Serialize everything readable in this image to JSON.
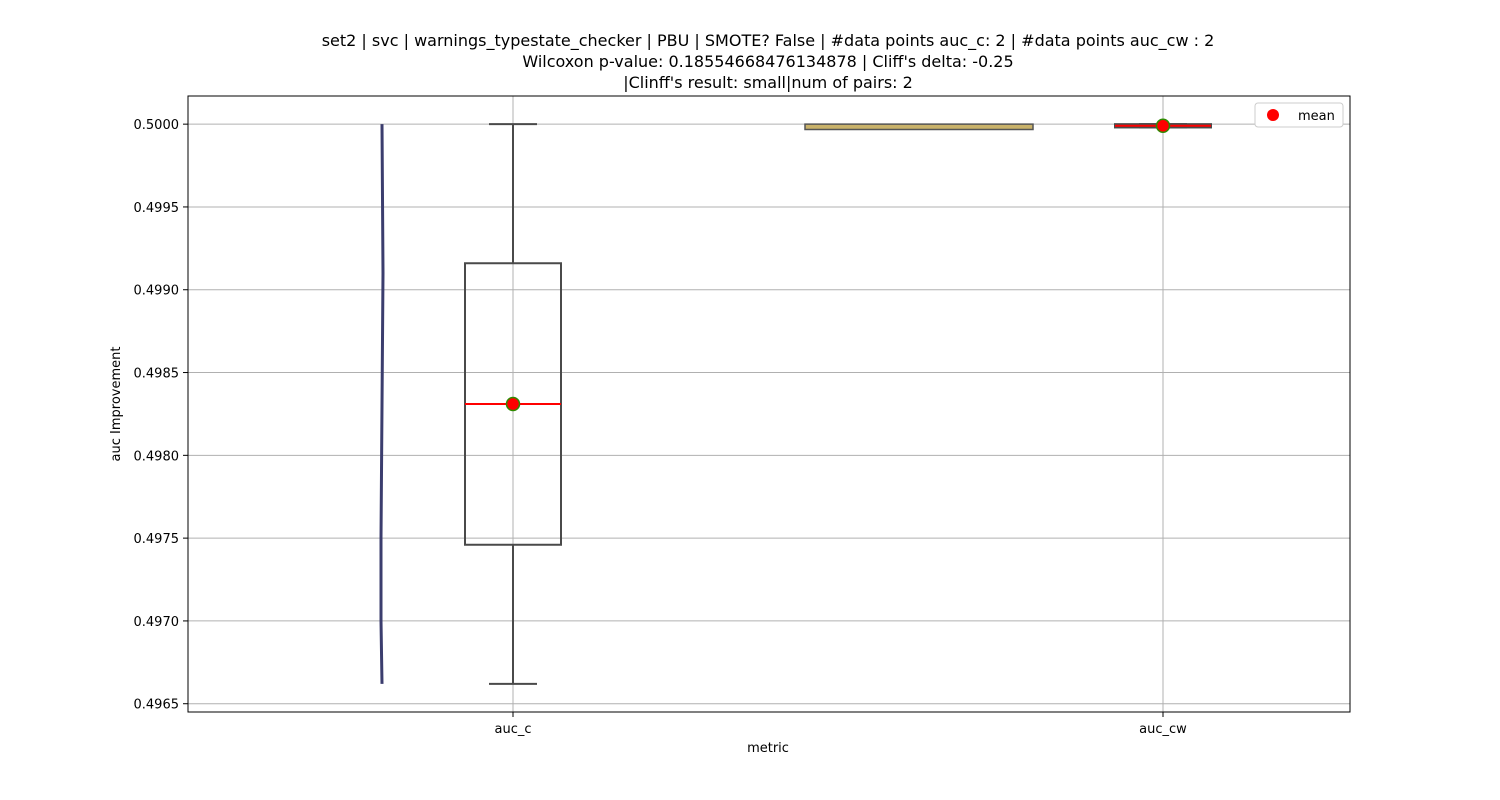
{
  "chart_data": {
    "type": "box",
    "title_lines": [
      "set2 | svc | warnings_typestate_checker | PBU | SMOTE? False | #data points auc_c: 2 | #data points auc_cw : 2",
      "Wilcoxon p-value: 0.18554668476134878 | Cliff's delta: -0.25",
      "|Clinff's result: small|num of pairs: 2"
    ],
    "xlabel": "metric",
    "ylabel": "auc Improvement",
    "categories": [
      "auc_c",
      "auc_cw"
    ],
    "ylim": [
      0.49645,
      0.50017
    ],
    "yticks": [
      0.4965,
      0.497,
      0.4975,
      0.498,
      0.4985,
      0.499,
      0.4995,
      0.5
    ],
    "ytick_labels": [
      "0.4965",
      "0.4970",
      "0.4975",
      "0.4980",
      "0.4985",
      "0.4990",
      "0.4995",
      "0.5000"
    ],
    "grid": true,
    "legend": {
      "position": "top-right",
      "entries": [
        "mean"
      ]
    },
    "colors": {
      "median": "#ff0000",
      "mean_fill": "#ff0000",
      "mean_edge": "#2e8b00",
      "box_edge": "#4a4a4a",
      "violin": "#3b3d6e",
      "grid": "#b0b0b0"
    },
    "boxes": [
      {
        "category": "auc_c",
        "min": 0.49662,
        "q1": 0.49746,
        "median": 0.49831,
        "q3": 0.49916,
        "max": 0.5,
        "mean": 0.49831
      },
      {
        "category": "auc_cw",
        "min": 0.49998,
        "q1": 0.49998,
        "median": 0.49999,
        "q3": 0.5,
        "max": 0.5,
        "mean": 0.49999
      }
    ],
    "violins": [
      {
        "category": "auc_c",
        "min": 0.49662,
        "max": 0.5
      },
      {
        "category": "auc_cw",
        "min": 0.49998,
        "max": 0.5
      }
    ]
  }
}
